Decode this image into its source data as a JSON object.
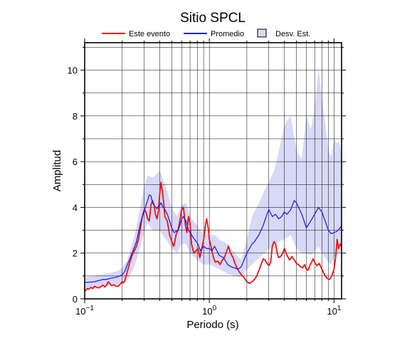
{
  "chart_data": {
    "type": "line",
    "title": "Sitio SPCL",
    "xlabel": "Periodo (s)",
    "ylabel": "Amplitud",
    "xscale": "log",
    "xlim": [
      0.1,
      11.5
    ],
    "ylim": [
      0,
      11.2
    ],
    "grid": true,
    "legend_position": "top",
    "x_tick_labels": [
      {
        "value": 0.1,
        "base": "10",
        "exp": "−1"
      },
      {
        "value": 1,
        "base": "10",
        "exp": "0"
      },
      {
        "value": 10,
        "base": "10",
        "exp": "1"
      }
    ],
    "y_ticks": [
      0,
      2,
      4,
      6,
      8,
      10
    ],
    "legend": [
      {
        "label": "Este evento",
        "color": "#ee1111",
        "kind": "line"
      },
      {
        "label": "Promedio",
        "color": "#2222dd",
        "kind": "line"
      },
      {
        "label": "Desv. Est.",
        "color": "#d8d8f8",
        "kind": "band"
      }
    ],
    "series": [
      {
        "name": "Este evento",
        "color": "#ee1111",
        "points": [
          [
            0.1,
            0.35
          ],
          [
            0.103,
            0.4
          ],
          [
            0.105,
            0.45
          ],
          [
            0.108,
            0.42
          ],
          [
            0.112,
            0.5
          ],
          [
            0.116,
            0.45
          ],
          [
            0.12,
            0.55
          ],
          [
            0.125,
            0.5
          ],
          [
            0.13,
            0.48
          ],
          [
            0.136,
            0.55
          ],
          [
            0.14,
            0.6
          ],
          [
            0.145,
            0.52
          ],
          [
            0.15,
            0.6
          ],
          [
            0.155,
            0.75
          ],
          [
            0.16,
            0.65
          ],
          [
            0.165,
            0.58
          ],
          [
            0.172,
            0.62
          ],
          [
            0.178,
            0.55
          ],
          [
            0.185,
            0.55
          ],
          [
            0.19,
            0.6
          ],
          [
            0.2,
            0.75
          ],
          [
            0.205,
            0.7
          ],
          [
            0.21,
            0.8
          ],
          [
            0.22,
            1.2
          ],
          [
            0.23,
            1.6
          ],
          [
            0.24,
            1.9
          ],
          [
            0.25,
            2.1
          ],
          [
            0.26,
            2.3
          ],
          [
            0.27,
            2.6
          ],
          [
            0.28,
            3.1
          ],
          [
            0.29,
            3.6
          ],
          [
            0.3,
            3.9
          ],
          [
            0.31,
            3.8
          ],
          [
            0.32,
            3.5
          ],
          [
            0.33,
            3.4
          ],
          [
            0.34,
            4.1
          ],
          [
            0.35,
            4.3
          ],
          [
            0.36,
            4.1
          ],
          [
            0.37,
            3.7
          ],
          [
            0.38,
            3.5
          ],
          [
            0.39,
            3.8
          ],
          [
            0.4,
            4.6
          ],
          [
            0.41,
            5.1
          ],
          [
            0.42,
            4.7
          ],
          [
            0.43,
            4.2
          ],
          [
            0.44,
            3.6
          ],
          [
            0.46,
            3.4
          ],
          [
            0.48,
            2.8
          ],
          [
            0.5,
            2.5
          ],
          [
            0.52,
            2.3
          ],
          [
            0.54,
            2.8
          ],
          [
            0.56,
            3.0
          ],
          [
            0.58,
            3.4
          ],
          [
            0.6,
            3.9
          ],
          [
            0.62,
            4.0
          ],
          [
            0.64,
            3.3
          ],
          [
            0.66,
            2.9
          ],
          [
            0.68,
            3.6
          ],
          [
            0.7,
            3.3
          ],
          [
            0.72,
            2.4
          ],
          [
            0.75,
            2.0
          ],
          [
            0.78,
            2.1
          ],
          [
            0.81,
            2.2
          ],
          [
            0.84,
            1.8
          ],
          [
            0.87,
            2.2
          ],
          [
            0.9,
            2.6
          ],
          [
            0.93,
            3.2
          ],
          [
            0.95,
            3.5
          ],
          [
            0.98,
            3.1
          ],
          [
            1.0,
            2.6
          ],
          [
            1.04,
            2.2
          ],
          [
            1.08,
            1.8
          ],
          [
            1.12,
            1.6
          ],
          [
            1.17,
            1.65
          ],
          [
            1.22,
            1.5
          ],
          [
            1.27,
            1.7
          ],
          [
            1.32,
            1.8
          ],
          [
            1.38,
            2.1
          ],
          [
            1.42,
            2.3
          ],
          [
            1.48,
            2.0
          ],
          [
            1.55,
            1.8
          ],
          [
            1.62,
            1.5
          ],
          [
            1.7,
            1.25
          ],
          [
            1.78,
            1.1
          ],
          [
            1.85,
            1.0
          ],
          [
            1.92,
            0.9
          ],
          [
            2.0,
            0.75
          ],
          [
            2.1,
            0.68
          ],
          [
            2.2,
            0.75
          ],
          [
            2.3,
            0.85
          ],
          [
            2.4,
            1.0
          ],
          [
            2.5,
            1.25
          ],
          [
            2.6,
            1.5
          ],
          [
            2.7,
            1.75
          ],
          [
            2.8,
            1.7
          ],
          [
            2.9,
            1.55
          ],
          [
            3.0,
            1.45
          ],
          [
            3.1,
            1.6
          ],
          [
            3.2,
            2.3
          ],
          [
            3.3,
            2.5
          ],
          [
            3.4,
            2.4
          ],
          [
            3.5,
            2.0
          ],
          [
            3.6,
            1.8
          ],
          [
            3.8,
            1.9
          ],
          [
            4.0,
            2.2
          ],
          [
            4.2,
            1.9
          ],
          [
            4.4,
            1.7
          ],
          [
            4.6,
            1.85
          ],
          [
            4.8,
            1.7
          ],
          [
            5.0,
            1.55
          ],
          [
            5.2,
            1.5
          ],
          [
            5.4,
            1.4
          ],
          [
            5.6,
            1.35
          ],
          [
            5.8,
            1.5
          ],
          [
            6.0,
            1.3
          ],
          [
            6.2,
            1.25
          ],
          [
            6.4,
            1.45
          ],
          [
            6.6,
            1.6
          ],
          [
            6.8,
            1.75
          ],
          [
            7.0,
            1.6
          ],
          [
            7.3,
            1.45
          ],
          [
            7.6,
            1.55
          ],
          [
            8.0,
            1.3
          ],
          [
            8.4,
            1.05
          ],
          [
            8.8,
            0.9
          ],
          [
            9.2,
            0.85
          ],
          [
            9.6,
            1.0
          ],
          [
            10.0,
            1.3
          ],
          [
            10.3,
            1.8
          ],
          [
            10.6,
            2.6
          ],
          [
            10.9,
            2.2
          ],
          [
            11.2,
            2.4
          ],
          [
            11.5,
            2.3
          ]
        ]
      },
      {
        "name": "Promedio",
        "color": "#2222dd",
        "points": [
          [
            0.1,
            0.72
          ],
          [
            0.11,
            0.73
          ],
          [
            0.12,
            0.75
          ],
          [
            0.13,
            0.8
          ],
          [
            0.14,
            0.85
          ],
          [
            0.15,
            0.85
          ],
          [
            0.16,
            0.9
          ],
          [
            0.17,
            0.92
          ],
          [
            0.18,
            0.95
          ],
          [
            0.19,
            1.0
          ],
          [
            0.2,
            1.05
          ],
          [
            0.21,
            1.2
          ],
          [
            0.22,
            1.5
          ],
          [
            0.23,
            1.75
          ],
          [
            0.24,
            2.0
          ],
          [
            0.25,
            2.25
          ],
          [
            0.26,
            2.5
          ],
          [
            0.27,
            2.9
          ],
          [
            0.28,
            3.3
          ],
          [
            0.29,
            3.6
          ],
          [
            0.3,
            3.8
          ],
          [
            0.31,
            4.1
          ],
          [
            0.32,
            4.3
          ],
          [
            0.33,
            4.55
          ],
          [
            0.34,
            4.5
          ],
          [
            0.35,
            4.2
          ],
          [
            0.36,
            4.1
          ],
          [
            0.37,
            4.0
          ],
          [
            0.38,
            3.95
          ],
          [
            0.39,
            4.05
          ],
          [
            0.4,
            4.1
          ],
          [
            0.41,
            4.2
          ],
          [
            0.42,
            4.05
          ],
          [
            0.44,
            3.9
          ],
          [
            0.46,
            3.7
          ],
          [
            0.48,
            3.4
          ],
          [
            0.5,
            3.1
          ],
          [
            0.52,
            2.9
          ],
          [
            0.54,
            2.95
          ],
          [
            0.56,
            3.0
          ],
          [
            0.58,
            3.2
          ],
          [
            0.6,
            3.5
          ],
          [
            0.62,
            3.6
          ],
          [
            0.65,
            3.4
          ],
          [
            0.68,
            3.0
          ],
          [
            0.72,
            2.8
          ],
          [
            0.76,
            2.6
          ],
          [
            0.8,
            2.45
          ],
          [
            0.85,
            2.1
          ],
          [
            0.9,
            2.3
          ],
          [
            0.95,
            2.2
          ],
          [
            1.0,
            2.2
          ],
          [
            1.05,
            2.1
          ],
          [
            1.1,
            2.3
          ],
          [
            1.15,
            2.1
          ],
          [
            1.2,
            1.9
          ],
          [
            1.3,
            1.8
          ],
          [
            1.4,
            1.5
          ],
          [
            1.5,
            1.4
          ],
          [
            1.6,
            1.35
          ],
          [
            1.7,
            1.3
          ],
          [
            1.8,
            1.4
          ],
          [
            1.9,
            1.7
          ],
          [
            2.0,
            2.0
          ],
          [
            2.1,
            2.2
          ],
          [
            2.2,
            2.4
          ],
          [
            2.3,
            2.5
          ],
          [
            2.5,
            2.8
          ],
          [
            2.7,
            3.2
          ],
          [
            2.9,
            3.7
          ],
          [
            3.0,
            3.9
          ],
          [
            3.2,
            3.6
          ],
          [
            3.4,
            3.7
          ],
          [
            3.6,
            3.5
          ],
          [
            3.8,
            3.6
          ],
          [
            4.0,
            3.8
          ],
          [
            4.2,
            3.7
          ],
          [
            4.5,
            3.9
          ],
          [
            4.8,
            4.3
          ],
          [
            5.0,
            4.2
          ],
          [
            5.3,
            3.9
          ],
          [
            5.6,
            3.6
          ],
          [
            6.0,
            3.1
          ],
          [
            6.5,
            3.4
          ],
          [
            7.0,
            3.7
          ],
          [
            7.5,
            4.0
          ],
          [
            8.0,
            3.8
          ],
          [
            8.5,
            3.4
          ],
          [
            9.0,
            3.0
          ],
          [
            9.5,
            2.85
          ],
          [
            10.0,
            2.9
          ],
          [
            10.5,
            2.95
          ],
          [
            11.0,
            3.05
          ],
          [
            11.5,
            3.2
          ]
        ]
      },
      {
        "name": "Desv. Est.",
        "color": "#d8d8f8",
        "band_x": [
          0.1,
          0.12,
          0.15,
          0.18,
          0.2,
          0.22,
          0.25,
          0.27,
          0.3,
          0.32,
          0.35,
          0.37,
          0.4,
          0.42,
          0.45,
          0.5,
          0.55,
          0.6,
          0.65,
          0.7,
          0.8,
          0.9,
          1.0,
          1.1,
          1.2,
          1.4,
          1.6,
          1.8,
          2.0,
          2.2,
          2.5,
          2.8,
          3.0,
          3.3,
          3.6,
          4.0,
          4.5,
          5.0,
          5.5,
          6.0,
          6.5,
          7.0,
          7.5,
          8.0,
          8.5,
          9.0,
          9.5,
          10.0,
          10.5,
          11.0,
          11.5
        ],
        "upper": [
          0.95,
          1.0,
          1.1,
          1.2,
          1.35,
          1.7,
          2.7,
          3.6,
          4.9,
          5.4,
          5.3,
          5.4,
          5.6,
          5.3,
          4.9,
          4.0,
          3.6,
          4.1,
          4.2,
          3.6,
          3.2,
          2.8,
          2.8,
          2.8,
          2.6,
          2.4,
          2.0,
          1.7,
          2.6,
          3.6,
          4.2,
          4.8,
          5.1,
          5.6,
          6.4,
          7.6,
          8.0,
          6.5,
          6.1,
          8.0,
          7.4,
          8.3,
          10.1,
          8.8,
          7.7,
          6.5,
          6.2,
          7.0,
          6.8,
          6.9,
          6.3
        ],
        "lower": [
          0.45,
          0.5,
          0.55,
          0.6,
          0.65,
          0.8,
          1.4,
          2.0,
          2.9,
          3.3,
          3.0,
          3.0,
          3.0,
          2.8,
          2.6,
          2.2,
          2.0,
          2.4,
          2.4,
          2.0,
          1.7,
          1.5,
          1.5,
          1.4,
          1.3,
          1.1,
          1.0,
          0.95,
          1.3,
          1.5,
          1.8,
          2.0,
          2.2,
          2.3,
          2.5,
          2.6,
          2.8,
          2.2,
          2.0,
          2.0,
          1.9,
          2.1,
          2.3,
          2.0,
          1.8,
          1.6,
          1.5,
          1.8,
          1.9,
          2.0,
          2.1
        ]
      }
    ]
  }
}
